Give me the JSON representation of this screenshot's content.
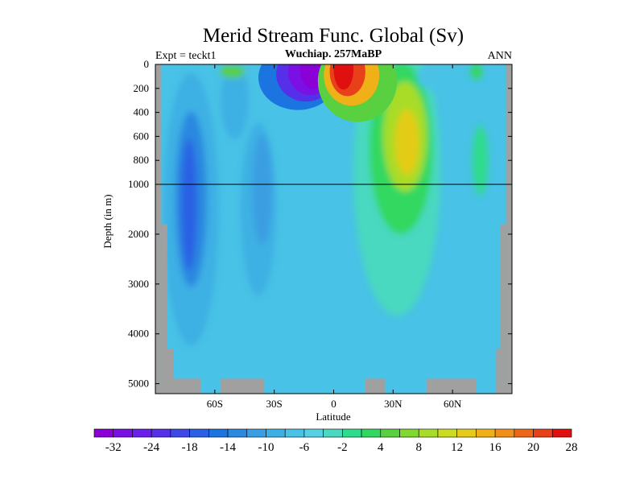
{
  "chart_data": {
    "type": "heatmap",
    "title": "Merid Stream Func. Global (Sv)",
    "subtitle_left": "Expt = teckt1",
    "subtitle_center": "Wuchiap. 257MaBP",
    "subtitle_right": "ANN",
    "xlabel": "Latitude",
    "ylabel": "Depth (in m)",
    "x_ticks": [
      "60S",
      "30S",
      "0",
      "30N",
      "60N"
    ],
    "x_tick_values": [
      -60,
      -30,
      0,
      30,
      60
    ],
    "xlim": [
      -90,
      90
    ],
    "y_ticks_upper": [
      0,
      200,
      400,
      600,
      800,
      1000
    ],
    "y_ticks_lower": [
      2000,
      3000,
      4000,
      5000
    ],
    "y_break_depth": 1000,
    "ylim": [
      0,
      5200
    ],
    "colorbar": {
      "labels": [
        "-32",
        "-24",
        "-18",
        "-14",
        "-10",
        "-6",
        "-2",
        "4",
        "8",
        "12",
        "16",
        "20",
        "28"
      ],
      "colors": [
        "#8a00d6",
        "#7a10e4",
        "#6a20ea",
        "#5530e8",
        "#3f48e6",
        "#2a60e4",
        "#1c74e0",
        "#2a88e0",
        "#3a9ee2",
        "#3cb0e4",
        "#48c2e6",
        "#56d0e4",
        "#4ad8c0",
        "#2edc8e",
        "#30d860",
        "#58d040",
        "#80d830",
        "#a8dc28",
        "#ccdc20",
        "#e4cc18",
        "#f0b018",
        "#f09018",
        "#ec6818",
        "#e84018",
        "#e01010"
      ]
    },
    "features": [
      {
        "name": "southern negative cell",
        "value_sv": -32,
        "lat": -12,
        "depth_m": 60
      },
      {
        "name": "northern positive cell",
        "value_sv": 28,
        "lat": 8,
        "depth_m": 60
      },
      {
        "name": "deep northern overturning",
        "value_sv": 14,
        "lat": 38,
        "depth_m": 700
      }
    ]
  }
}
